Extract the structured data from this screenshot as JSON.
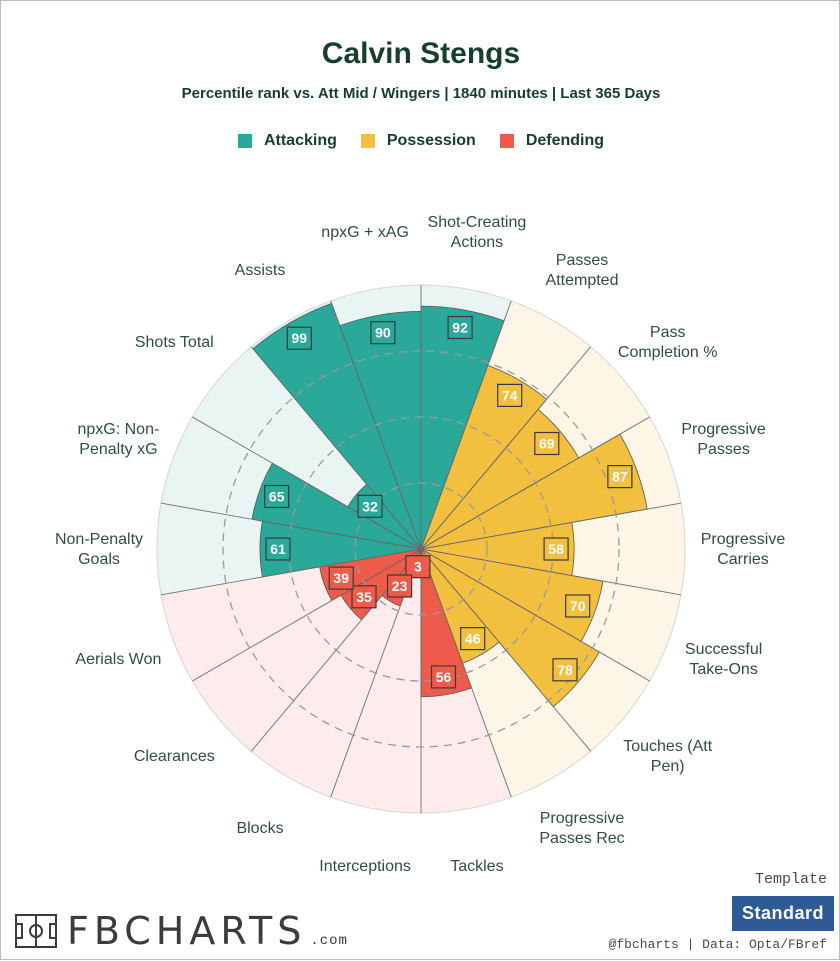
{
  "title": "Calvin Stengs",
  "subtitle": "Percentile rank vs. Att Mid / Wingers | 1840 minutes | Last 365 Days",
  "legend": [
    {
      "label": "Attacking",
      "color": "#2aa99b"
    },
    {
      "label": "Possession",
      "color": "#f2c03e"
    },
    {
      "label": "Defending",
      "color": "#ef5b4b"
    }
  ],
  "chart_data": {
    "type": "polar-bar",
    "scale": [
      0,
      100
    ],
    "grid_rings": [
      25,
      50,
      75
    ],
    "categories": [
      {
        "label": "Shot-Creating Actions",
        "lines": [
          "Shot-Creating",
          "Actions"
        ],
        "value": 92,
        "group": "Attacking"
      },
      {
        "label": "Passes Attempted",
        "lines": [
          "Passes",
          "Attempted"
        ],
        "value": 74,
        "group": "Possession"
      },
      {
        "label": "Pass Completion %",
        "lines": [
          "Pass",
          "Completion %"
        ],
        "value": 69,
        "group": "Possession"
      },
      {
        "label": "Progressive Passes",
        "lines": [
          "Progressive",
          "Passes"
        ],
        "value": 87,
        "group": "Possession"
      },
      {
        "label": "Progressive Carries",
        "lines": [
          "Progressive",
          "Carries"
        ],
        "value": 58,
        "group": "Possession"
      },
      {
        "label": "Successful Take-Ons",
        "lines": [
          "Successful",
          "Take-Ons"
        ],
        "value": 70,
        "group": "Possession"
      },
      {
        "label": "Touches (Att Pen)",
        "lines": [
          "Touches (Att",
          "Pen)"
        ],
        "value": 78,
        "group": "Possession"
      },
      {
        "label": "Progressive Passes Rec",
        "lines": [
          "Progressive",
          "Passes Rec"
        ],
        "value": 46,
        "group": "Possession"
      },
      {
        "label": "Tackles",
        "lines": [
          "Tackles"
        ],
        "value": 56,
        "group": "Defending"
      },
      {
        "label": "Interceptions",
        "lines": [
          "Interceptions"
        ],
        "value": 3,
        "group": "Defending"
      },
      {
        "label": "Blocks",
        "lines": [
          "Blocks"
        ],
        "value": 23,
        "group": "Defending"
      },
      {
        "label": "Clearances",
        "lines": [
          "Clearances"
        ],
        "value": 35,
        "group": "Defending"
      },
      {
        "label": "Aerials Won",
        "lines": [
          "Aerials Won"
        ],
        "value": 39,
        "group": "Defending"
      },
      {
        "label": "Non-Penalty Goals",
        "lines": [
          "Non-Penalty",
          "Goals"
        ],
        "value": 61,
        "group": "Attacking"
      },
      {
        "label": "npxG: Non-Penalty xG",
        "lines": [
          "npxG: Non-",
          "Penalty xG"
        ],
        "value": 65,
        "group": "Attacking"
      },
      {
        "label": "Shots Total",
        "lines": [
          "Shots Total"
        ],
        "value": 32,
        "group": "Attacking"
      },
      {
        "label": "Assists",
        "lines": [
          "Assists"
        ],
        "value": 99,
        "group": "Attacking"
      },
      {
        "label": "npxG + xAG",
        "lines": [
          "npxG + xAG"
        ],
        "value": 90,
        "group": "Attacking"
      }
    ],
    "group_colors": {
      "Attacking": {
        "bar": "#2aa99b",
        "background": "#e8f5f2",
        "label_bg": "#2aa99b"
      },
      "Possession": {
        "bar": "#f2c03e",
        "background": "#fdf6e6",
        "label_bg": "#f2c03e"
      },
      "Defending": {
        "bar": "#ef5b4b",
        "background": "#fdeceb",
        "label_bg": "#ef5b4b"
      }
    }
  },
  "footer": {
    "logo_text": "FBCHARTS",
    "logo_domain": ".com",
    "template_label": "Template",
    "template_value": "Standard",
    "credit": "@fbcharts | Data: Opta/FBref"
  }
}
